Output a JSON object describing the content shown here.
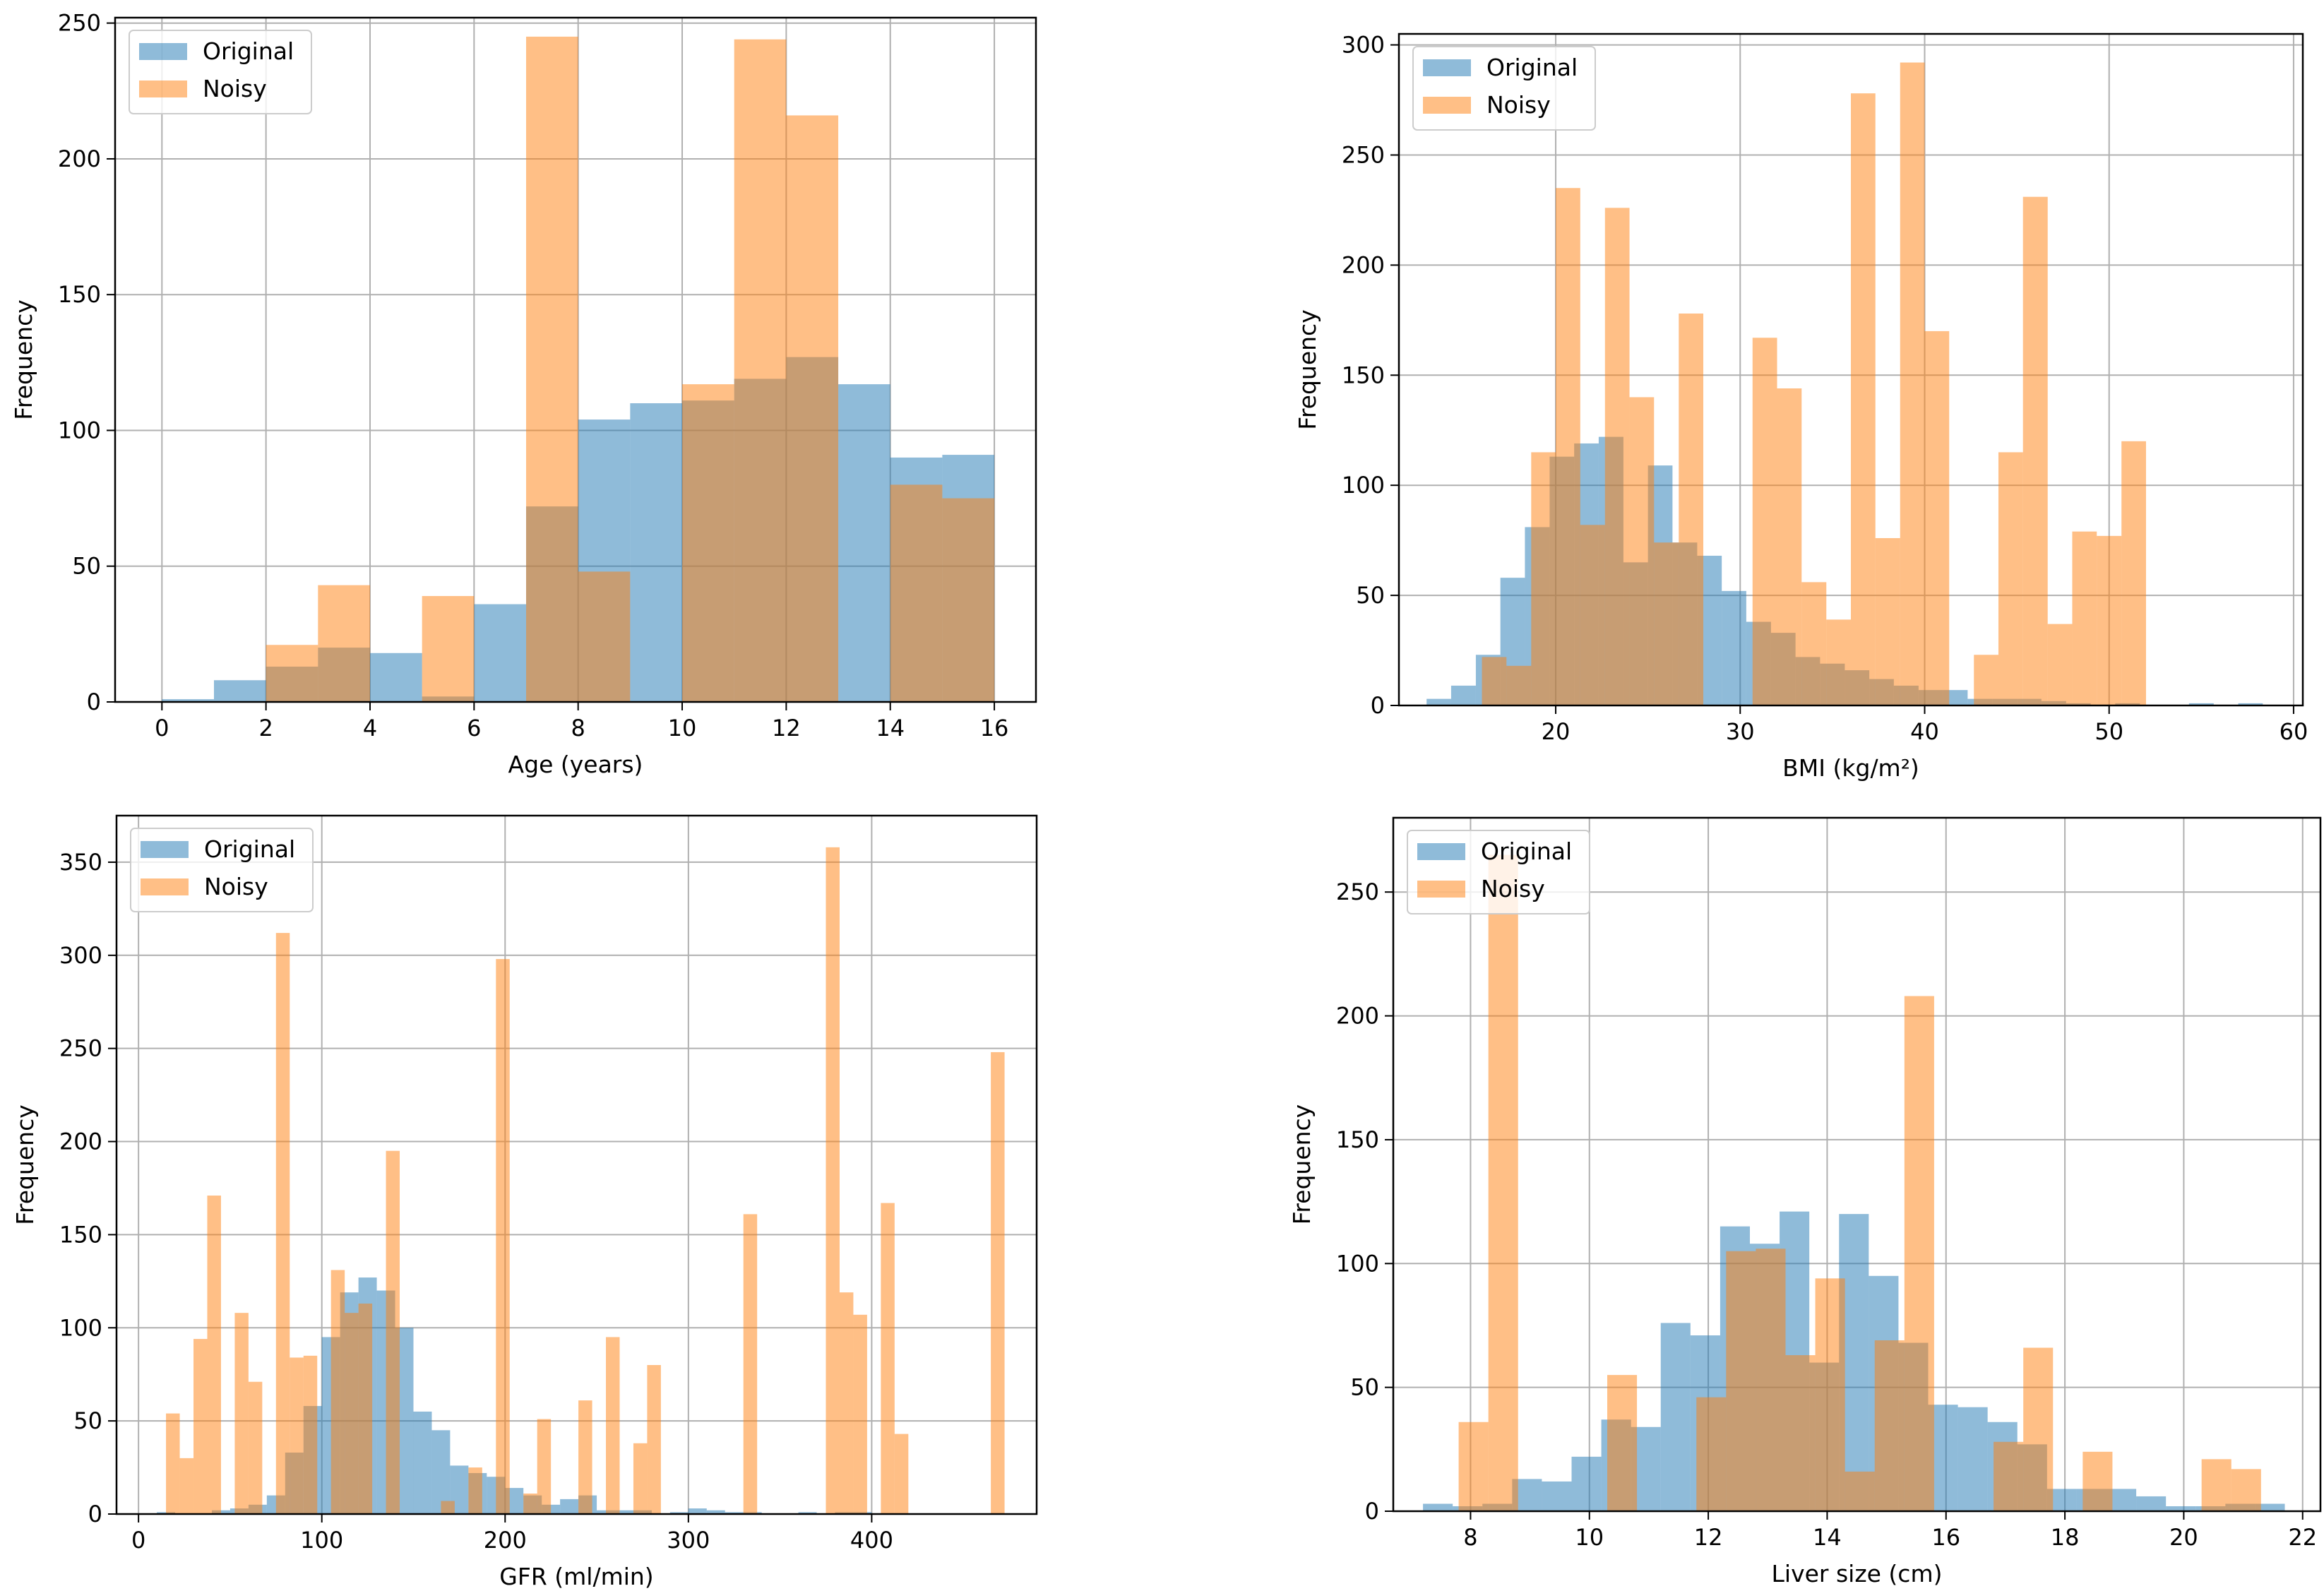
{
  "chart_data": [
    {
      "type": "histogram",
      "xlabel": "Age (years)",
      "ylabel": "Frequency",
      "xlim": [
        -0.9,
        16.8
      ],
      "ylim": [
        0,
        252
      ],
      "xticks": [
        0,
        2,
        4,
        6,
        8,
        10,
        12,
        14,
        16
      ],
      "yticks": [
        0,
        50,
        100,
        150,
        200,
        250
      ],
      "grid": true,
      "legend": "top-left",
      "series": [
        {
          "name": "Original",
          "color": "#1f77b4",
          "edges": [
            0,
            1,
            2,
            3,
            4,
            5,
            6,
            7,
            8,
            9,
            10,
            11,
            12,
            13,
            14,
            15,
            16
          ],
          "values": [
            1,
            8,
            13,
            20,
            18,
            2,
            36,
            72,
            104,
            110,
            111,
            119,
            127,
            117,
            90,
            91
          ]
        },
        {
          "name": "Noisy",
          "color": "#ff7f0e",
          "edges": [
            2,
            3,
            4,
            5,
            6,
            7,
            8,
            9,
            10,
            11,
            12,
            13,
            14,
            15,
            16
          ],
          "values": [
            21,
            43,
            0,
            39,
            0,
            245,
            48,
            0,
            117,
            244,
            216,
            0,
            80,
            75
          ]
        }
      ]
    },
    {
      "type": "histogram",
      "xlabel": "BMI (kg/m²)",
      "ylabel": "Frequency",
      "xlim": [
        11.5,
        60.5
      ],
      "ylim": [
        0,
        305
      ],
      "xticks": [
        20,
        30,
        40,
        50,
        60
      ],
      "yticks": [
        0,
        50,
        100,
        150,
        200,
        250,
        300
      ],
      "grid": true,
      "legend": "top-left",
      "series": [
        {
          "name": "Original",
          "color": "#1f77b4",
          "edges": [
            13,
            14.33,
            15.67,
            17,
            18.33,
            19.67,
            21,
            22.33,
            23.67,
            25,
            26.33,
            27.67,
            29,
            30.33,
            31.67,
            33,
            34.33,
            35.67,
            37,
            38.33,
            39.67,
            41,
            42.33,
            43.67,
            45,
            46.33,
            47.67,
            49,
            50.33,
            51.67,
            53,
            54.33,
            55.67,
            57,
            58.33
          ],
          "values": [
            3,
            9,
            23,
            58,
            81,
            113,
            119,
            122,
            65,
            109,
            74,
            68,
            52,
            38,
            33,
            22,
            19,
            16,
            12,
            9,
            7,
            7,
            3,
            3,
            3,
            2,
            1,
            0,
            1,
            0,
            0,
            1,
            0,
            1
          ]
        },
        {
          "name": "Noisy",
          "color": "#ff7f0e",
          "edges": [
            16,
            17.33,
            18.67,
            20,
            21.33,
            22.67,
            24,
            25.33,
            26.67,
            28,
            29.33,
            30.67,
            32,
            33.33,
            34.67,
            36,
            37.33,
            38.67,
            40,
            41.33,
            42.67,
            44,
            45.33,
            46.67,
            48,
            49.33,
            50.67,
            52,
            53.33,
            54.67
          ],
          "values": [
            22,
            18,
            115,
            235,
            82,
            226,
            140,
            74,
            178,
            0,
            0,
            167,
            144,
            56,
            39,
            278,
            76,
            292,
            170,
            0,
            23,
            115,
            231,
            37,
            79,
            77,
            120,
            0,
            0
          ]
        }
      ]
    },
    {
      "type": "histogram",
      "xlabel": "GFR (ml/min)",
      "ylabel": "Frequency",
      "xlim": [
        -12,
        490
      ],
      "ylim": [
        0,
        375
      ],
      "xticks": [
        0,
        100,
        200,
        300,
        400
      ],
      "yticks": [
        0,
        50,
        100,
        150,
        200,
        250,
        300,
        350
      ],
      "grid": true,
      "legend": "top-left",
      "series": [
        {
          "name": "Original",
          "color": "#1f77b4",
          "edges": [
            10,
            20,
            30,
            40,
            50,
            60,
            70,
            80,
            90,
            100,
            110,
            120,
            130,
            140,
            150,
            160,
            170,
            180,
            190,
            200,
            210,
            220,
            230,
            240,
            250,
            260,
            270,
            280,
            290,
            300,
            310,
            320,
            330,
            340,
            350,
            360,
            370,
            380,
            390,
            400
          ],
          "values": [
            1,
            0,
            0,
            2,
            3,
            5,
            10,
            33,
            58,
            95,
            119,
            127,
            120,
            100,
            55,
            45,
            26,
            22,
            20,
            14,
            10,
            5,
            8,
            10,
            2,
            2,
            2,
            0,
            1,
            3,
            2,
            1,
            1,
            0,
            0,
            1,
            0,
            1,
            1
          ],
          "edges_note": "uniform 10-unit bins"
        },
        {
          "name": "Noisy",
          "color": "#ff7f0e",
          "edges": [
            15,
            22.5,
            30,
            37.5,
            45,
            52.5,
            60,
            67.5,
            75,
            82.5,
            90,
            97.5,
            105,
            112.5,
            120,
            127.5,
            135,
            142.5,
            150,
            157.5,
            165,
            172.5,
            180,
            187.5,
            195,
            202.5,
            210,
            217.5,
            225,
            232.5,
            240,
            247.5,
            255,
            262.5,
            270,
            277.5,
            285,
            292.5,
            300,
            307.5,
            315,
            322.5,
            330,
            337.5,
            345,
            352.5,
            360,
            367.5,
            375,
            382.5,
            390,
            397.5,
            405,
            412.5,
            420,
            427.5,
            435,
            442.5,
            450,
            457.5,
            465,
            472.5
          ],
          "values": [
            54,
            30,
            94,
            171,
            0,
            108,
            71,
            0,
            312,
            84,
            85,
            0,
            131,
            108,
            113,
            0,
            195,
            0,
            0,
            0,
            7,
            0,
            25,
            0,
            298,
            0,
            11,
            51,
            0,
            0,
            61,
            0,
            95,
            0,
            38,
            80,
            0,
            0,
            0,
            0,
            0,
            0,
            161,
            0,
            0,
            0,
            0,
            0,
            358,
            119,
            107,
            0,
            167,
            43,
            0,
            0,
            0,
            0,
            0,
            0,
            248
          ]
        }
      ]
    },
    {
      "type": "histogram",
      "xlabel": "Liver size (cm)",
      "ylabel": "Frequency",
      "xlim": [
        6.7,
        22.3
      ],
      "ylim": [
        0,
        280
      ],
      "xticks": [
        8,
        10,
        12,
        14,
        16,
        18,
        20,
        22
      ],
      "yticks": [
        0,
        50,
        100,
        150,
        200,
        250
      ],
      "grid": true,
      "legend": "top-left",
      "series": [
        {
          "name": "Original",
          "color": "#1f77b4",
          "edges": [
            7.2,
            7.7,
            8.2,
            8.7,
            9.2,
            9.7,
            10.2,
            10.7,
            11.2,
            11.7,
            12.2,
            12.7,
            13.2,
            13.7,
            14.2,
            14.7,
            15.2,
            15.7,
            16.2,
            16.7,
            17.2,
            17.7,
            18.2,
            18.7,
            19.2,
            19.7,
            20.2,
            20.7,
            21.2,
            21.7
          ],
          "values": [
            3,
            2,
            3,
            13,
            12,
            22,
            37,
            34,
            76,
            71,
            115,
            108,
            121,
            60,
            120,
            95,
            68,
            43,
            42,
            36,
            27,
            9,
            9,
            9,
            6,
            2,
            2,
            3,
            3
          ]
        },
        {
          "name": "Noisy",
          "color": "#ff7f0e",
          "edges": [
            7.8,
            8.3,
            8.8,
            9.3,
            9.8,
            10.3,
            10.8,
            11.3,
            11.8,
            12.3,
            12.8,
            13.3,
            13.8,
            14.3,
            14.8,
            15.3,
            15.8,
            16.3,
            16.8,
            17.3,
            17.8,
            18.3,
            18.8,
            19.3,
            19.8,
            20.3,
            20.8,
            21.3,
            21.8
          ],
          "values": [
            36,
            265,
            0,
            0,
            0,
            55,
            0,
            0,
            46,
            105,
            106,
            63,
            94,
            16,
            69,
            208,
            0,
            0,
            28,
            66,
            0,
            24,
            0,
            0,
            0,
            21,
            17,
            0
          ]
        }
      ]
    }
  ],
  "legend_labels": {
    "original": "Original",
    "noisy": "Noisy"
  }
}
